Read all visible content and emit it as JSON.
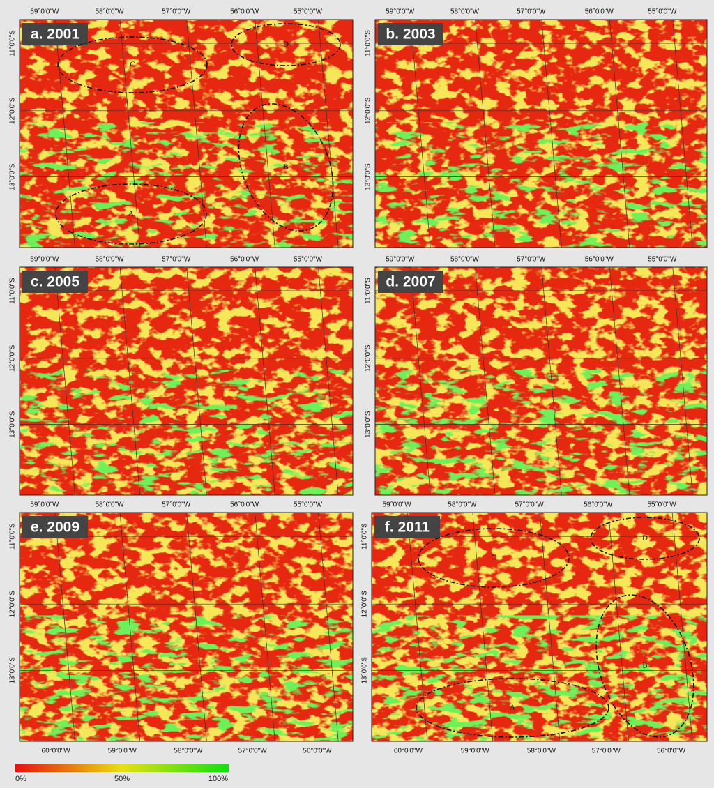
{
  "panels": [
    {
      "label": "a. 2001",
      "top_lon": [
        "59°0'0\"W",
        "58°0'0\"W",
        "57°0'0\"W",
        "56°0'0\"W",
        "55°0'0\"W"
      ],
      "lat": [
        "11°0'0\"S",
        "12°0'0\"S",
        "13°0'0\"S"
      ],
      "regions": [
        "C",
        "D",
        "B",
        "A"
      ]
    },
    {
      "label": "b. 2003",
      "top_lon": [
        "59°0'0\"W",
        "58°0'0\"W",
        "57°0'0\"W",
        "56°0'0\"W",
        "55°0'0\"W"
      ],
      "lat": [
        "11°0'0\"S",
        "12°0'0\"S",
        "13°0'0\"S"
      ]
    },
    {
      "label": "c. 2005",
      "top_lon": [
        "59°0'0\"W",
        "58°0'0\"W",
        "57°0'0\"W",
        "56°0'0\"W",
        "55°0'0\"W"
      ],
      "lat": [
        "11°0'0\"S",
        "12°0'0\"S",
        "13°0'0\"S"
      ]
    },
    {
      "label": "d. 2007",
      "top_lon": [
        "59°0'0\"W",
        "58°0'0\"W",
        "57°0'0\"W",
        "56°0'0\"W",
        "55°0'0\"W"
      ],
      "lat": [
        "11°0'0\"S",
        "12°0'0\"S",
        "13°0'0\"S"
      ]
    },
    {
      "label": "e. 2009",
      "top_lon": [
        "59°0'0\"W",
        "58°0'0\"W",
        "57°0'0\"W",
        "56°0'0\"W",
        "55°0'0\"W"
      ],
      "lat": [
        "11°0'0\"S",
        "12°0'0\"S",
        "13°0'0\"S"
      ],
      "bottom_lon": [
        "60°0'0\"W",
        "59°0'0\"W",
        "58°0'0\"W",
        "57°0'0\"W",
        "56°0'0\"W"
      ]
    },
    {
      "label": "f. 2011",
      "top_lon": [
        "59°0'0\"W",
        "58°0'0\"W",
        "57°0'0\"W",
        "56°0'0\"W",
        "55°0'0\"W"
      ],
      "lat": [
        "11°0'0\"S",
        "12°0'0\"S",
        "13°0'0\"S"
      ],
      "bottom_lon": [
        "60°0'0\"W",
        "59°0'0\"W",
        "58°0'0\"W",
        "57°0'0\"W",
        "56°0'0\"W"
      ],
      "regions": [
        "C",
        "D",
        "B",
        "A"
      ]
    }
  ],
  "legend": {
    "labels": [
      "0%",
      "50%",
      "100%"
    ]
  }
}
